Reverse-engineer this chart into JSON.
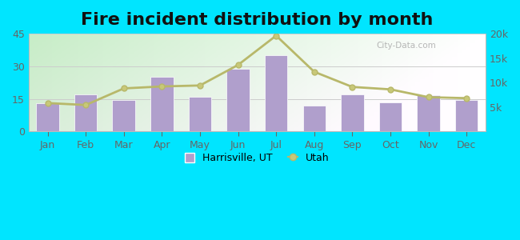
{
  "title": "Fire incident distribution by month",
  "months": [
    "Jan",
    "Feb",
    "Mar",
    "Apr",
    "May",
    "Jun",
    "Jul",
    "Aug",
    "Sep",
    "Oct",
    "Nov",
    "Dec"
  ],
  "harrisville_values": [
    13,
    17,
    14.5,
    25,
    16,
    29,
    35,
    12,
    17,
    13.5,
    16.5,
    14.5
  ],
  "utah_values": [
    5800,
    5400,
    8800,
    9200,
    9400,
    13600,
    19600,
    12200,
    9100,
    8600,
    7000,
    6800
  ],
  "bar_color": "#b09fcc",
  "bar_edge_color": "#b09fcc",
  "line_color": "#b8b86a",
  "line_marker": "o",
  "line_marker_face": "#c8c878",
  "outer_background": "#00e5ff",
  "plot_bg_left": "#c8eac8",
  "plot_bg_right": "#f0fff0",
  "ylim_left": [
    0,
    45
  ],
  "ylim_right": [
    0,
    20000
  ],
  "yticks_left": [
    0,
    15,
    30,
    45
  ],
  "yticks_right": [
    5000,
    10000,
    15000,
    20000
  ],
  "title_fontsize": 16,
  "label_fontsize": 9,
  "legend_harrisville": "Harrisville, UT",
  "legend_utah": "Utah",
  "watermark": "City-Data.com"
}
